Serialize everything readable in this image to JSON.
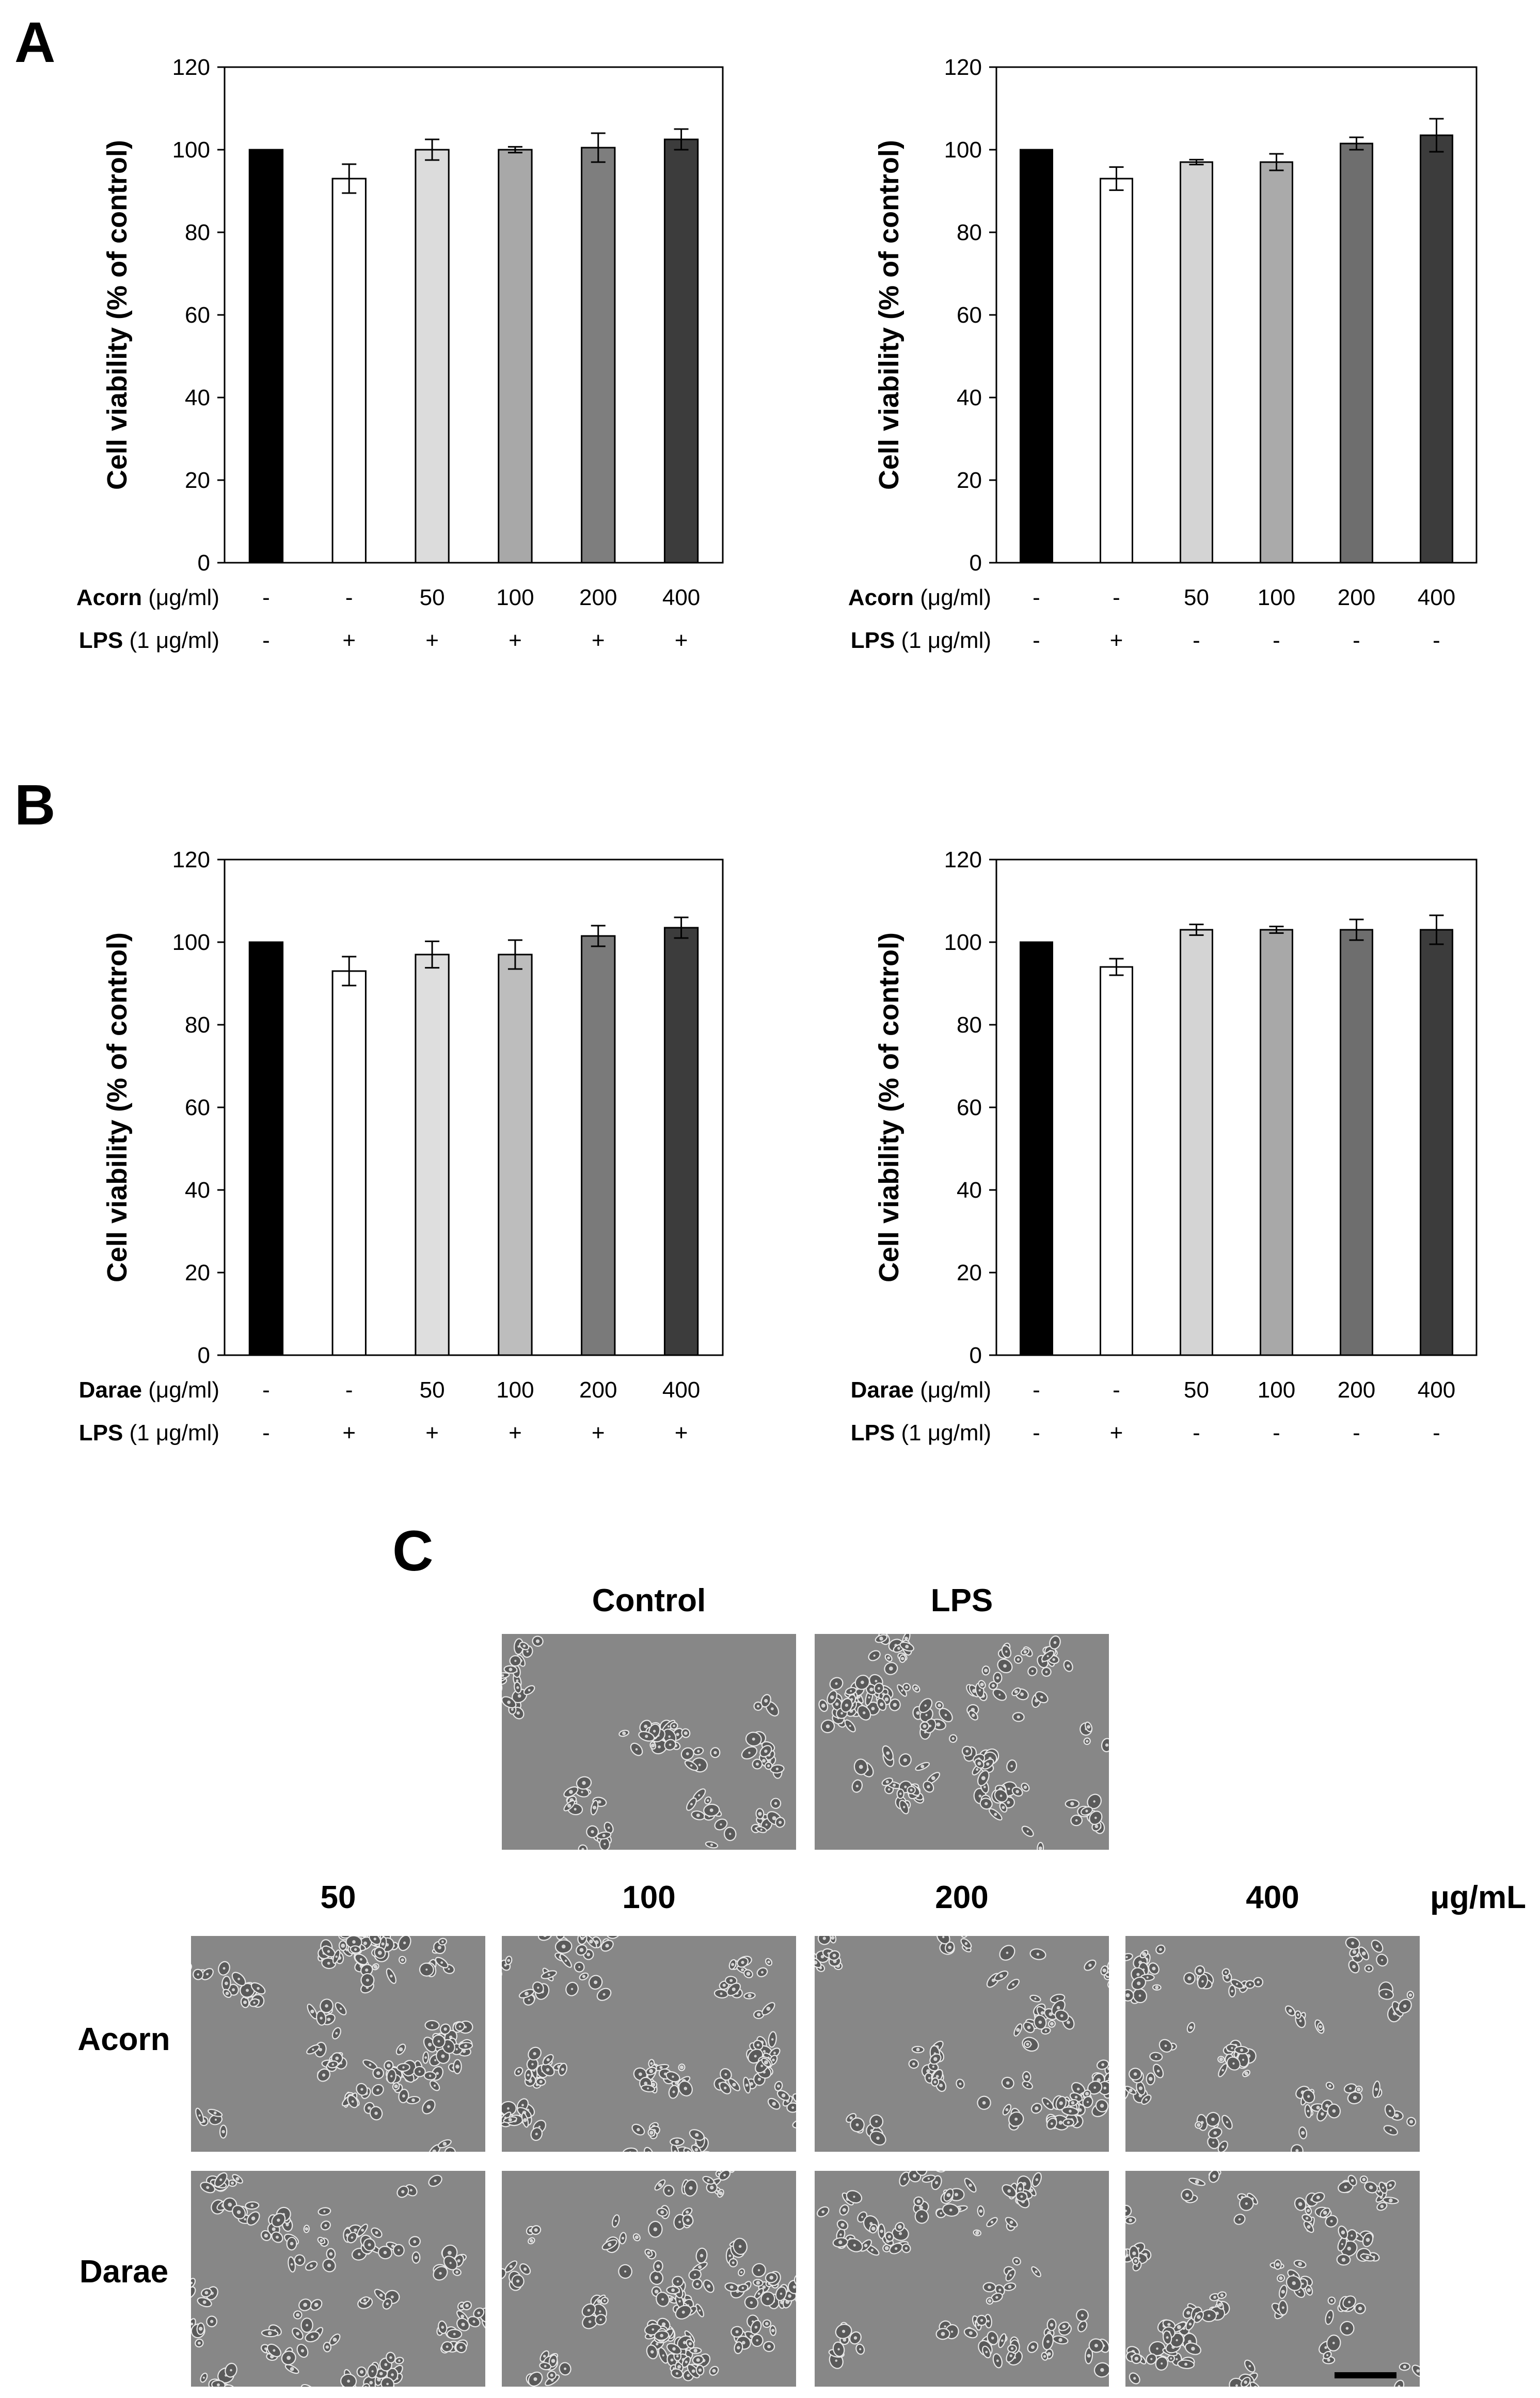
{
  "panels": {
    "A": "A",
    "B": "B",
    "C": "C"
  },
  "charts": {
    "A_left": {
      "rows": [
        {
          "name": "Acorn",
          "unit": "(μg/ml)",
          "values": [
            "-",
            "-",
            "50",
            "100",
            "200",
            "400"
          ]
        },
        {
          "name": "LPS",
          "unit": "(1 μg/ml)",
          "values": [
            "-",
            "+",
            "+",
            "+",
            "+",
            "+"
          ]
        }
      ]
    },
    "A_right": {
      "rows": [
        {
          "name": "Acorn",
          "unit": "(μg/ml)",
          "values": [
            "-",
            "-",
            "50",
            "100",
            "200",
            "400"
          ]
        },
        {
          "name": "LPS",
          "unit": "(1 μg/ml)",
          "values": [
            "-",
            "+",
            "-",
            "-",
            "-",
            "-"
          ]
        }
      ]
    },
    "B_left": {
      "rows": [
        {
          "name": "Darae",
          "unit": "(μg/ml)",
          "values": [
            "-",
            "-",
            "50",
            "100",
            "200",
            "400"
          ]
        },
        {
          "name": "LPS",
          "unit": "(1 μg/ml)",
          "values": [
            "-",
            "+",
            "+",
            "+",
            "+",
            "+"
          ]
        }
      ]
    },
    "B_right": {
      "rows": [
        {
          "name": "Darae",
          "unit": "(μg/ml)",
          "values": [
            "-",
            "-",
            "50",
            "100",
            "200",
            "400"
          ]
        },
        {
          "name": "LPS",
          "unit": "(1 μg/ml)",
          "values": [
            "-",
            "+",
            "-",
            "-",
            "-",
            "-"
          ]
        }
      ]
    }
  },
  "chart_data": [
    {
      "id": "A_left",
      "type": "bar",
      "ylabel": "Cell viability (% of control)",
      "ylim": [
        0,
        120
      ],
      "yticks": [
        0,
        20,
        40,
        60,
        80,
        100,
        120
      ],
      "values": [
        100,
        93,
        100,
        100,
        100.5,
        102.5
      ],
      "errors": [
        0,
        3.5,
        2.5,
        0.7,
        3.5,
        2.5
      ],
      "colors": [
        "#000000",
        "#ffffff",
        "#dcdcdc",
        "#a8a8a8",
        "#7e7e7e",
        "#3c3c3c"
      ]
    },
    {
      "id": "A_right",
      "type": "bar",
      "ylabel": "Cell viability (% of control)",
      "ylim": [
        0,
        120
      ],
      "yticks": [
        0,
        20,
        40,
        60,
        80,
        100,
        120
      ],
      "values": [
        100,
        93,
        97,
        97,
        101.5,
        103.5
      ],
      "errors": [
        0,
        2.8,
        0.6,
        2,
        1.5,
        4
      ],
      "colors": [
        "#000000",
        "#ffffff",
        "#d4d4d4",
        "#aaaaaa",
        "#6e6e6e",
        "#3c3c3c"
      ]
    },
    {
      "id": "B_left",
      "type": "bar",
      "ylabel": "Cell viability (% of control)",
      "ylim": [
        0,
        120
      ],
      "yticks": [
        0,
        20,
        40,
        60,
        80,
        100,
        120
      ],
      "values": [
        100,
        93,
        97,
        97,
        101.5,
        103.5
      ],
      "errors": [
        0,
        3.5,
        3.2,
        3.5,
        2.5,
        2.5
      ],
      "colors": [
        "#000000",
        "#ffffff",
        "#dedede",
        "#bdbdbd",
        "#7a7a7a",
        "#3c3c3c"
      ]
    },
    {
      "id": "B_right",
      "type": "bar",
      "ylabel": "Cell viability (% of control)",
      "ylim": [
        0,
        120
      ],
      "yticks": [
        0,
        20,
        40,
        60,
        80,
        100,
        120
      ],
      "values": [
        100,
        94,
        103,
        103,
        103,
        103
      ],
      "errors": [
        0,
        2,
        1.3,
        0.8,
        2.5,
        3.5
      ],
      "colors": [
        "#000000",
        "#ffffff",
        "#d4d4d4",
        "#a8a8a8",
        "#6e6e6e",
        "#3c3c3c"
      ]
    }
  ],
  "micrographs": {
    "top_labels": [
      "Control",
      "LPS"
    ],
    "col_labels": [
      "50",
      "100",
      "200",
      "400"
    ],
    "unit": "μg/mL",
    "row_labels": [
      "Acorn",
      "Darae"
    ]
  }
}
